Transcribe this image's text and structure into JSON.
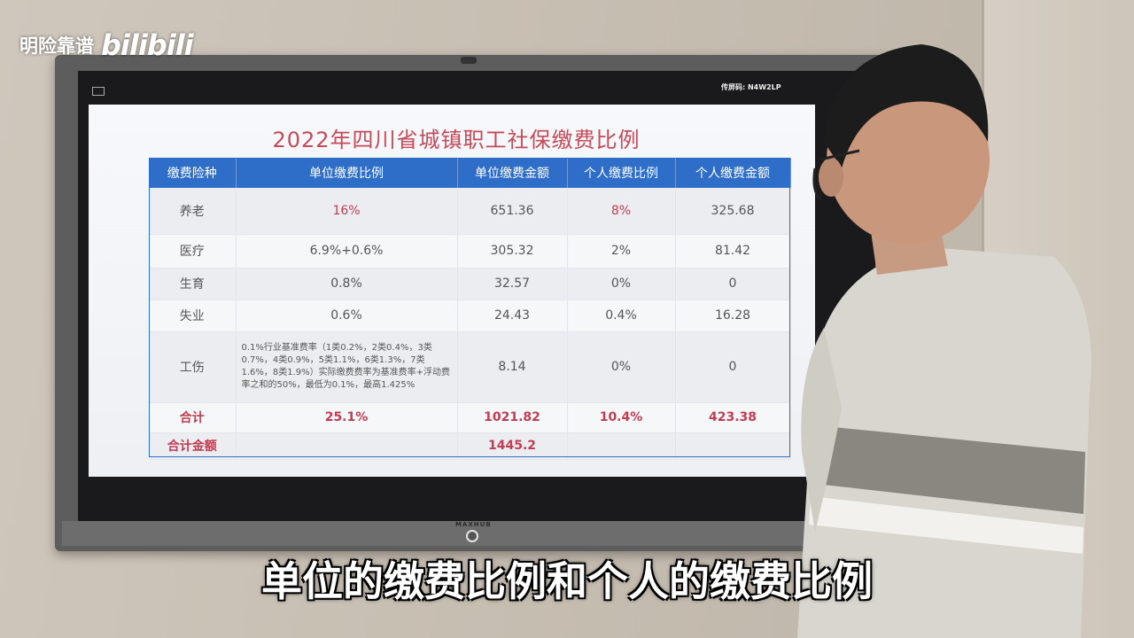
{
  "watermark": {
    "channel": "明险靠谱",
    "platform": "bilibili"
  },
  "tv": {
    "brand": "MAXHUB",
    "screen_code": "传屏码: N4W2LP"
  },
  "slide": {
    "title": "2022年四川省城镇职工社保缴费比例",
    "headers": [
      "缴费险种",
      "单位缴费比例",
      "单位缴费金额",
      "个人缴费比例",
      "个人缴费金额"
    ],
    "rows": [
      {
        "type": "养老",
        "unit_rate": "16%",
        "unit_amount": "651.36",
        "personal_rate": "8%",
        "personal_amount": "325.68"
      },
      {
        "type": "医疗",
        "unit_rate": "6.9%+0.6%",
        "unit_amount": "305.32",
        "personal_rate": "2%",
        "personal_amount": "81.42"
      },
      {
        "type": "生育",
        "unit_rate": "0.8%",
        "unit_amount": "32.57",
        "personal_rate": "0%",
        "personal_amount": "0"
      },
      {
        "type": "失业",
        "unit_rate": "0.6%",
        "unit_amount": "24.43",
        "personal_rate": "0.4%",
        "personal_amount": "16.28"
      },
      {
        "type": "工伤",
        "unit_rate": "0.1%行业基准费率（1类0.2%，2类0.4%，3类0.7%，4类0.9%，5类1.1%，6类1.3%，7类1.6%，8类1.9%）实际缴费费率为基准费率+浮动费率之和的50%，最低为0.1%，最高1.425%",
        "unit_amount": "8.14",
        "personal_rate": "0%",
        "personal_amount": "0"
      }
    ],
    "total": {
      "label": "合计",
      "unit_rate": "25.1%",
      "unit_amount": "1021.82",
      "personal_rate": "10.4%",
      "personal_amount": "423.38"
    },
    "grand_total": {
      "label": "合计金额",
      "amount": "1445.2"
    }
  },
  "subtitle": "单位的缴费比例和个人的缴费比例",
  "colors": {
    "header_bg": "#2e6ec9",
    "accent": "#c23c52",
    "title": "#c34b5a"
  }
}
